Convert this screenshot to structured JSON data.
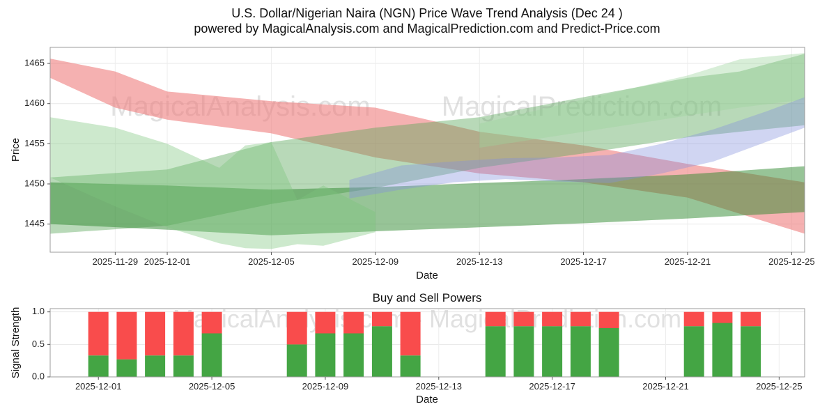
{
  "title": {
    "line1": "U.S. Dollar/Nigerian Naira  (NGN) Price Wave Trend Analysis (Dec 24 )",
    "line2": "powered by MagicalAnalysis.com and MagicalPrediction.com and Predict-Price.com"
  },
  "watermarks": {
    "price_left": "MagicalAnalysis.com",
    "price_right": "MagicalPrediction.com",
    "signals": "MagicalAnalysis.com - MagicalPrediction.com"
  },
  "chart_data": [
    {
      "type": "area",
      "name": "price_wave_trend",
      "xlabel": "Date",
      "ylabel": "Price",
      "ylim": [
        1441.5,
        1467
      ],
      "yticks": [
        1445,
        1450,
        1455,
        1460,
        1465
      ],
      "x_unit": "days_since_2025-11-27",
      "xlim": [
        -0.5,
        28.5
      ],
      "xticks": [
        {
          "x": 2,
          "label": "2025-11-29"
        },
        {
          "x": 4,
          "label": "2025-12-01"
        },
        {
          "x": 8,
          "label": "2025-12-05"
        },
        {
          "x": 12,
          "label": "2025-12-09"
        },
        {
          "x": 16,
          "label": "2025-12-13"
        },
        {
          "x": 20,
          "label": "2025-12-17"
        },
        {
          "x": 24,
          "label": "2025-12-21"
        },
        {
          "x": 28,
          "label": "2025-12-25"
        }
      ],
      "grid": true,
      "legend": "none",
      "bands": [
        {
          "name": "sell-pressure",
          "color": "#ee7d7d",
          "opacity": 0.6,
          "x": [
            -0.5,
            2,
            4,
            8,
            12,
            16,
            20,
            24,
            28.5
          ],
          "top": [
            1465.6,
            1464.0,
            1461.5,
            1460.3,
            1459.5,
            1456.5,
            1454.8,
            1452.5,
            1450.2
          ],
          "bottom": [
            1463.2,
            1459.5,
            1458.0,
            1456.3,
            1453.3,
            1451.3,
            1450.2,
            1448.3,
            1443.8
          ]
        },
        {
          "name": "buy-trend",
          "color": "#56a556",
          "opacity": 0.42,
          "x": [
            -0.5,
            4,
            8,
            12,
            16,
            20,
            24,
            26,
            28.5
          ],
          "top": [
            1450.8,
            1451.8,
            1455.2,
            1457.0,
            1458.3,
            1460.8,
            1463.2,
            1464.0,
            1466.2
          ],
          "bottom": [
            1443.8,
            1444.8,
            1447.5,
            1449.5,
            1452.0,
            1453.8,
            1455.8,
            1456.5,
            1457.3
          ]
        },
        {
          "name": "support",
          "color": "#2f8a2f",
          "opacity": 0.5,
          "x": [
            -0.5,
            4,
            8,
            12,
            16,
            20,
            24,
            28.5
          ],
          "top": [
            1450.2,
            1449.8,
            1449.3,
            1449.6,
            1450.1,
            1450.6,
            1451.2,
            1452.2
          ],
          "bottom": [
            1445.0,
            1444.3,
            1443.6,
            1444.1,
            1444.6,
            1445.1,
            1445.7,
            1446.5
          ]
        },
        {
          "name": "early-decline",
          "color": "#7cc67c",
          "opacity": 0.38,
          "x": [
            -0.5,
            2,
            4,
            6,
            7,
            8,
            9,
            10,
            12
          ],
          "top": [
            1458.3,
            1457.0,
            1455.0,
            1452.0,
            1454.8,
            1455.2,
            1448.0,
            1449.8,
            1446.5
          ],
          "bottom": [
            1450.8,
            1447.2,
            1444.6,
            1442.6,
            1442.0,
            1441.9,
            1442.5,
            1442.3,
            1444.0
          ]
        },
        {
          "name": "late-rally",
          "color": "#9ed49e",
          "opacity": 0.4,
          "x": [
            16,
            20,
            24,
            26,
            28.5
          ],
          "top": [
            1457.5,
            1460.5,
            1463.5,
            1465.5,
            1466.3
          ],
          "bottom": [
            1454.5,
            1456.5,
            1458.5,
            1459.5,
            1460.5
          ]
        },
        {
          "name": "forecast",
          "color": "#8391de",
          "opacity": 0.38,
          "x": [
            11,
            13,
            15,
            17,
            19,
            21,
            23,
            25,
            27,
            28.5
          ],
          "top": [
            1450.5,
            1452.3,
            1452.8,
            1453.2,
            1453.3,
            1453.6,
            1455.0,
            1456.8,
            1459.0,
            1460.8
          ],
          "bottom": [
            1448.2,
            1449.3,
            1450.2,
            1450.6,
            1450.3,
            1450.1,
            1451.3,
            1452.8,
            1455.2,
            1457.0
          ]
        }
      ]
    },
    {
      "type": "bar",
      "name": "buy_sell_powers",
      "title": "Buy and Sell Powers",
      "xlabel": "Date",
      "ylabel": "Signal Strength",
      "stacked": true,
      "ylim": [
        0,
        1.05
      ],
      "yticks": [
        0.0,
        0.5,
        1.0
      ],
      "x_base": "2025-12-01",
      "xlim_days": [
        -1.7,
        24.9
      ],
      "xticks": [
        "2025-12-01",
        "2025-12-05",
        "2025-12-09",
        "2025-12-13",
        "2025-12-17",
        "2025-12-21",
        "2025-12-25"
      ],
      "grid": true,
      "series_colors": {
        "buy": "#44a544",
        "sell": "#f94c4c"
      },
      "bars": [
        {
          "date": "2025-12-01",
          "buy": 0.33,
          "sell": 0.67
        },
        {
          "date": "2025-12-02",
          "buy": 0.27,
          "sell": 0.73
        },
        {
          "date": "2025-12-03",
          "buy": 0.33,
          "sell": 0.67
        },
        {
          "date": "2025-12-04",
          "buy": 0.33,
          "sell": 0.67
        },
        {
          "date": "2025-12-05",
          "buy": 0.67,
          "sell": 0.33
        },
        {
          "date": "2025-12-08",
          "buy": 0.5,
          "sell": 0.5
        },
        {
          "date": "2025-12-09",
          "buy": 0.67,
          "sell": 0.33
        },
        {
          "date": "2025-12-10",
          "buy": 0.67,
          "sell": 0.33
        },
        {
          "date": "2025-12-11",
          "buy": 0.78,
          "sell": 0.22
        },
        {
          "date": "2025-12-12",
          "buy": 0.33,
          "sell": 0.67
        },
        {
          "date": "2025-12-15",
          "buy": 0.78,
          "sell": 0.22
        },
        {
          "date": "2025-12-16",
          "buy": 0.78,
          "sell": 0.22
        },
        {
          "date": "2025-12-17",
          "buy": 0.78,
          "sell": 0.22
        },
        {
          "date": "2025-12-18",
          "buy": 0.78,
          "sell": 0.22
        },
        {
          "date": "2025-12-19",
          "buy": 0.75,
          "sell": 0.25
        },
        {
          "date": "2025-12-22",
          "buy": 0.78,
          "sell": 0.22
        },
        {
          "date": "2025-12-23",
          "buy": 0.83,
          "sell": 0.17
        },
        {
          "date": "2025-12-24",
          "buy": 0.78,
          "sell": 0.22
        }
      ]
    }
  ]
}
